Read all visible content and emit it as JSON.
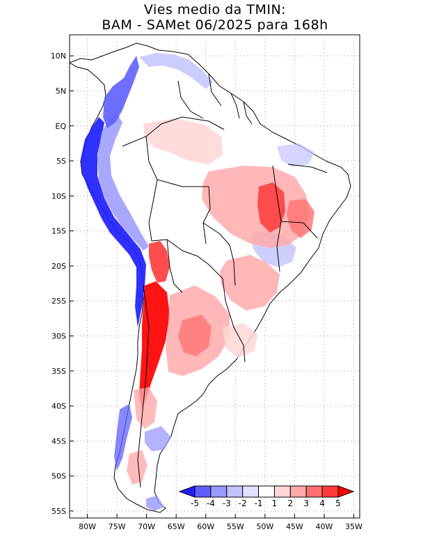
{
  "title": {
    "line1": "Vies medio da TMIN:",
    "line2": "BAM - SAMet 06/2025  para 168h"
  },
  "map": {
    "region": "South America",
    "lon_range": [
      -83,
      -34
    ],
    "lat_range": [
      -56,
      13
    ],
    "lat_ticks": [
      {
        "value": 10,
        "label": "10N"
      },
      {
        "value": 5,
        "label": "5N"
      },
      {
        "value": 0,
        "label": "EQ"
      },
      {
        "value": -5,
        "label": "5S"
      },
      {
        "value": -10,
        "label": "10S"
      },
      {
        "value": -15,
        "label": "15S"
      },
      {
        "value": -20,
        "label": "20S"
      },
      {
        "value": -25,
        "label": "25S"
      },
      {
        "value": -30,
        "label": "30S"
      },
      {
        "value": -35,
        "label": "35S"
      },
      {
        "value": -40,
        "label": "40S"
      },
      {
        "value": -45,
        "label": "45S"
      },
      {
        "value": -50,
        "label": "50S"
      },
      {
        "value": -55,
        "label": "55S"
      }
    ],
    "lon_ticks": [
      {
        "value": -80,
        "label": "80W"
      },
      {
        "value": -75,
        "label": "75W"
      },
      {
        "value": -70,
        "label": "70W"
      },
      {
        "value": -65,
        "label": "65W"
      },
      {
        "value": -60,
        "label": "60W"
      },
      {
        "value": -55,
        "label": "55W"
      },
      {
        "value": -50,
        "label": "50W"
      },
      {
        "value": -45,
        "label": "45W"
      },
      {
        "value": -40,
        "label": "40W"
      },
      {
        "value": -35,
        "label": "35W"
      }
    ]
  },
  "colorbar": {
    "labels": [
      "-5",
      "-4",
      "-3",
      "-2",
      "-1",
      "1",
      "2",
      "3",
      "4",
      "5"
    ],
    "colors": [
      "#1f1fff",
      "#5f5fff",
      "#9999ff",
      "#c3c3ff",
      "#e1e1ff",
      "#ffffff",
      "#ffd7d7",
      "#ffaaaa",
      "#ff7070",
      "#ff3a3a",
      "#ff0000"
    ]
  }
}
